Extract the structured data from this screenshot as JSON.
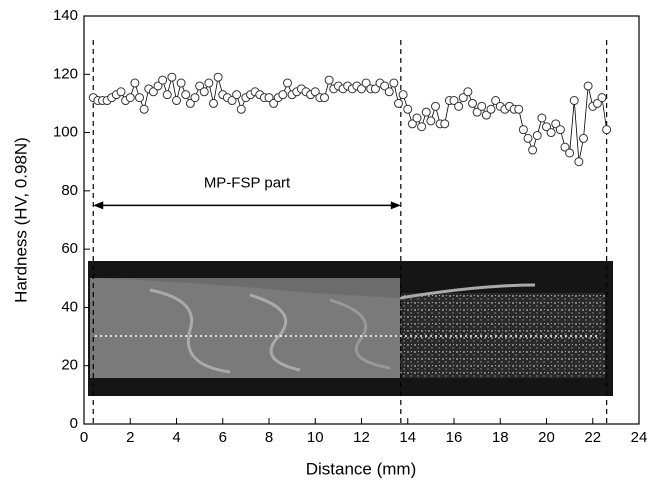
{
  "chart_data": {
    "type": "line",
    "xlabel": "Distance (mm)",
    "ylabel": "Hardness (HV, 0.98N)",
    "xlim": [
      0,
      24
    ],
    "xticks": [
      0,
      2,
      4,
      6,
      8,
      10,
      12,
      14,
      16,
      18,
      20,
      22,
      24
    ],
    "ylim": [
      0,
      140
    ],
    "yticks": [
      0,
      20,
      40,
      60,
      80,
      100,
      120,
      140
    ],
    "series": [
      {
        "color": "#000000",
        "x": [
          0.4,
          0.6,
          0.8,
          1.0,
          1.2,
          1.4,
          1.6,
          1.8,
          2.0,
          2.2,
          2.4,
          2.6,
          2.8,
          3.0,
          3.2,
          3.4,
          3.6,
          3.8,
          4.0,
          4.2,
          4.4,
          4.6,
          4.8,
          5.0,
          5.2,
          5.4,
          5.6,
          5.8,
          6.0,
          6.2,
          6.4,
          6.6,
          6.8,
          7.0,
          7.2,
          7.4,
          7.6,
          7.8,
          8.0,
          8.2,
          8.4,
          8.6,
          8.8,
          9.0,
          9.2,
          9.4,
          9.6,
          9.8,
          10.0,
          10.2,
          10.4,
          10.6,
          10.8,
          11.0,
          11.2,
          11.4,
          11.6,
          11.8,
          12.0,
          12.2,
          12.4,
          12.6,
          12.8,
          13.0,
          13.2,
          13.4,
          13.6,
          13.8,
          14.0,
          14.2,
          14.4,
          14.6,
          14.8,
          15.0,
          15.2,
          15.4,
          15.6,
          15.8,
          16.0,
          16.2,
          16.4,
          16.6,
          16.8,
          17.0,
          17.2,
          17.4,
          17.6,
          17.8,
          18.0,
          18.2,
          18.4,
          18.6,
          18.8,
          19.0,
          19.2,
          19.4,
          19.6,
          19.8,
          20.0,
          20.2,
          20.4,
          20.6,
          20.8,
          21.0,
          21.2,
          21.4,
          21.6,
          21.8,
          22.0,
          22.2,
          22.4,
          22.6
        ],
        "values": [
          112,
          111,
          111,
          111,
          112,
          113,
          114,
          111,
          112,
          117,
          112,
          108,
          115,
          114,
          116,
          118,
          113,
          119,
          111,
          117,
          113,
          110,
          112,
          116,
          114,
          117,
          110,
          119,
          113,
          112,
          111,
          113,
          108,
          112,
          113,
          114,
          113,
          112,
          112,
          110,
          112,
          113,
          117,
          113,
          114,
          115,
          114,
          113,
          114,
          112,
          112,
          118,
          115,
          116,
          115,
          116,
          115,
          116,
          115,
          117,
          115,
          115,
          117,
          116,
          114,
          117,
          110,
          113,
          108,
          103,
          105,
          102,
          107,
          104,
          109,
          103,
          103,
          111,
          111,
          109,
          112,
          114,
          110,
          107,
          109,
          106,
          108,
          111,
          109,
          108,
          109,
          108,
          108,
          101,
          98,
          94,
          99,
          105,
          102,
          100,
          103,
          101,
          95,
          93,
          111,
          90,
          98,
          116,
          109,
          110,
          112,
          101
        ]
      }
    ],
    "vlines": [
      0.4,
      13.7,
      22.6
    ],
    "annotation": {
      "text": "MP-FSP part",
      "x": [
        0.4,
        13.7
      ],
      "y": 75
    }
  }
}
